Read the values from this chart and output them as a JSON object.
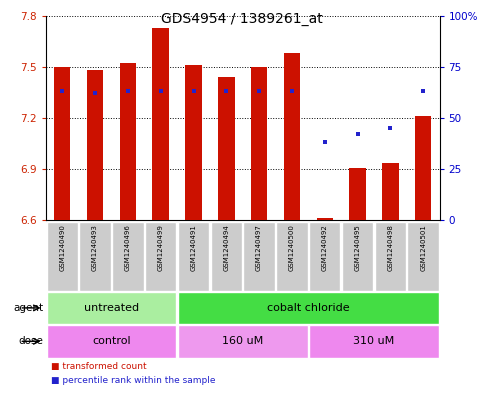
{
  "title": "GDS4954 / 1389261_at",
  "samples": [
    "GSM1240490",
    "GSM1240493",
    "GSM1240496",
    "GSM1240499",
    "GSM1240491",
    "GSM1240494",
    "GSM1240497",
    "GSM1240500",
    "GSM1240492",
    "GSM1240495",
    "GSM1240498",
    "GSM1240501"
  ],
  "bar_bottoms": [
    6.6,
    6.6,
    6.6,
    6.6,
    6.6,
    6.6,
    6.6,
    6.6,
    6.6,
    6.6,
    6.6,
    6.6
  ],
  "bar_tops": [
    7.5,
    7.48,
    7.52,
    7.73,
    7.51,
    7.44,
    7.5,
    7.58,
    6.615,
    6.905,
    6.935,
    7.21
  ],
  "percentile_ranks": [
    63,
    62,
    63,
    63,
    63,
    63,
    63,
    63,
    38,
    42,
    45,
    63
  ],
  "ylim_left": [
    6.6,
    7.8
  ],
  "ylim_right": [
    0,
    100
  ],
  "yticks_left": [
    6.6,
    6.9,
    7.2,
    7.5,
    7.8
  ],
  "yticks_right": [
    0,
    25,
    50,
    75,
    100
  ],
  "ytick_labels_left": [
    "6.6",
    "6.9",
    "7.2",
    "7.5",
    "7.8"
  ],
  "ytick_labels_right": [
    "0",
    "25",
    "50",
    "75",
    "100%"
  ],
  "bar_color": "#cc1100",
  "dot_color": "#2222cc",
  "agent_groups": [
    {
      "label": "untreated",
      "start": 0,
      "end": 4,
      "color": "#aaeea0"
    },
    {
      "label": "cobalt chloride",
      "start": 4,
      "end": 12,
      "color": "#44dd44"
    }
  ],
  "dose_groups": [
    {
      "label": "control",
      "start": 0,
      "end": 4,
      "color": "#ee88ee"
    },
    {
      "label": "160 uM",
      "start": 4,
      "end": 8,
      "color": "#ee99ee"
    },
    {
      "label": "310 uM",
      "start": 8,
      "end": 12,
      "color": "#ee88ee"
    }
  ],
  "legend_items": [
    {
      "label": "transformed count",
      "color": "#cc1100",
      "marker": "s"
    },
    {
      "label": "percentile rank within the sample",
      "color": "#2222cc",
      "marker": "s"
    }
  ],
  "bar_width": 0.5,
  "sample_box_color": "#cccccc",
  "bg_color": "#ffffff"
}
